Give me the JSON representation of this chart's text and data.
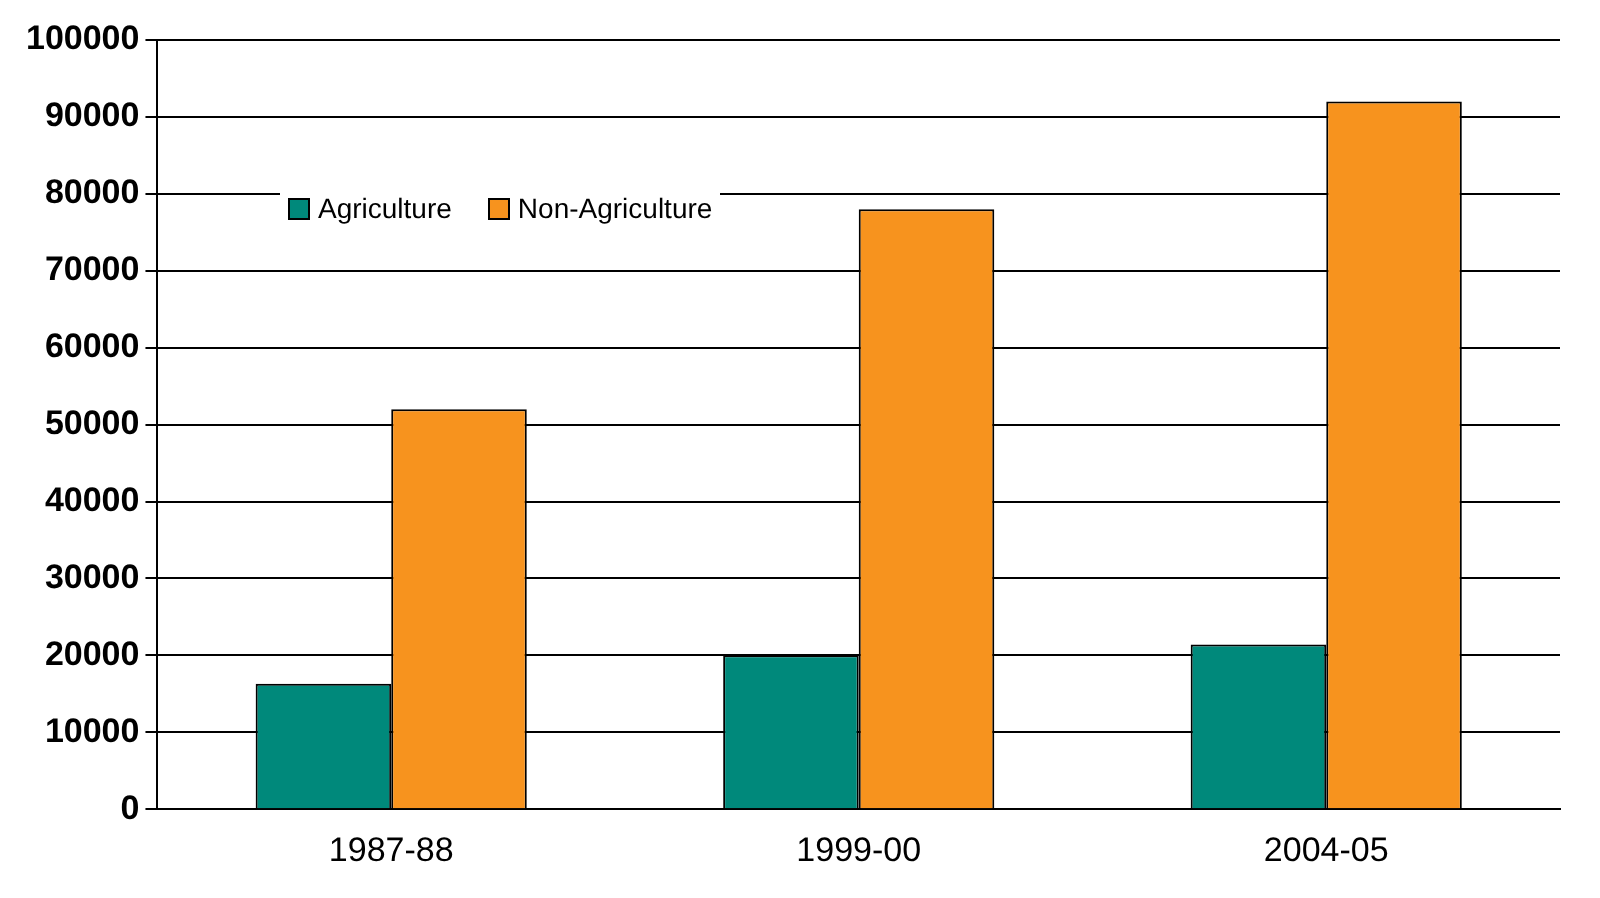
{
  "chart_data": {
    "type": "bar",
    "categories": [
      "1987-88",
      "1999-00",
      "2004-05"
    ],
    "series": [
      {
        "name": "Agriculture",
        "color": "#00897b",
        "values": [
          16300,
          20000,
          21400
        ]
      },
      {
        "name": "Non-Agriculture",
        "color": "#f7931e",
        "values": [
          52000,
          78000,
          92000
        ]
      }
    ],
    "ylim": [
      0,
      100000
    ],
    "yticks": [
      0,
      10000,
      20000,
      30000,
      40000,
      50000,
      60000,
      70000,
      80000,
      90000,
      100000
    ],
    "grid": "y",
    "legend": "top left"
  }
}
